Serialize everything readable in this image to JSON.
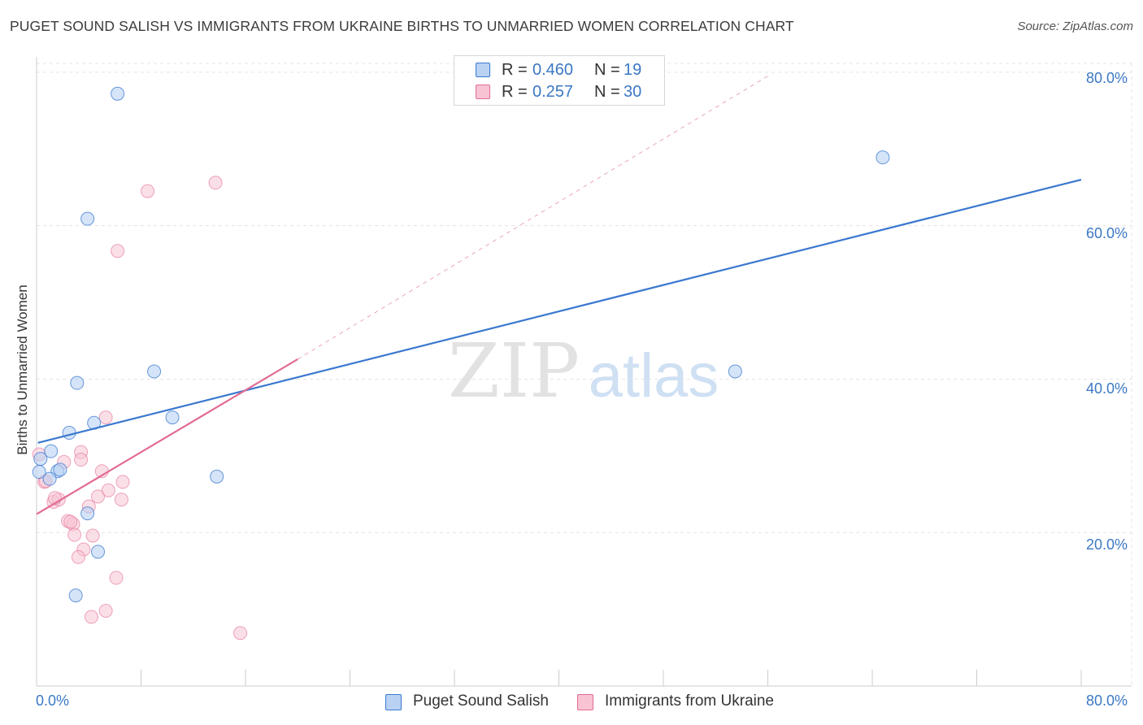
{
  "title": "PUGET SOUND SALISH VS IMMIGRANTS FROM UKRAINE BIRTHS TO UNMARRIED WOMEN CORRELATION CHART",
  "source": "Source: ZipAtlas.com",
  "watermark": {
    "zip": "ZIP",
    "atlas": "atlas"
  },
  "legend": {
    "rows": [
      {
        "r_label": "R =",
        "r_value": "0.460",
        "n_label": "N =",
        "n_value": "19"
      },
      {
        "r_label": "R =",
        "r_value": "0.257",
        "n_label": "N =",
        "n_value": "30"
      }
    ]
  },
  "bottom_legend": {
    "series1": "Puget Sound Salish",
    "series2": "Immigrants from Ukraine"
  },
  "chart_data": {
    "type": "scatter",
    "title": "PUGET SOUND SALISH VS IMMIGRANTS FROM UKRAINE BIRTHS TO UNMARRIED WOMEN CORRELATION CHART",
    "xlabel": "",
    "ylabel": "Births to Unmarried Women",
    "xlim": [
      0,
      80
    ],
    "ylim": [
      0,
      82
    ],
    "x_tick_labels": [
      "0.0%",
      "80.0%"
    ],
    "y_tick_labels": [
      "20.0%",
      "40.0%",
      "60.0%",
      "80.0%"
    ],
    "y_ticks": [
      20,
      40,
      60,
      80
    ],
    "grid": true,
    "legend_position": "top-center",
    "colors": {
      "series1": "#3a78d0",
      "series2": "#e26b94",
      "series1_fill": "#b9d2f3",
      "series2_fill": "#f8c4d3"
    },
    "series": [
      {
        "name": "Puget Sound Salish",
        "points": [
          [
            6.2,
            77.2
          ],
          [
            3.9,
            60.9
          ],
          [
            3.1,
            39.5
          ],
          [
            9.0,
            41.0
          ],
          [
            10.4,
            35.0
          ],
          [
            4.4,
            34.3
          ],
          [
            2.5,
            33.0
          ],
          [
            1.1,
            30.6
          ],
          [
            0.3,
            29.6
          ],
          [
            1.6,
            28.0
          ],
          [
            1.8,
            28.2
          ],
          [
            1.0,
            27.0
          ],
          [
            13.8,
            27.3
          ],
          [
            3.9,
            22.5
          ],
          [
            4.7,
            17.5
          ],
          [
            3.0,
            11.8
          ],
          [
            64.8,
            68.9
          ],
          [
            53.5,
            41.0
          ],
          [
            0.2,
            27.9
          ]
        ],
        "trend": {
          "x1": 0.1,
          "y1": 31.7,
          "x2": 80.0,
          "y2": 66.0
        }
      },
      {
        "name": "Immigrants from Ukraine",
        "points": [
          [
            13.7,
            65.6
          ],
          [
            8.5,
            64.5
          ],
          [
            6.2,
            56.7
          ],
          [
            5.3,
            35.0
          ],
          [
            2.1,
            29.2
          ],
          [
            3.4,
            30.5
          ],
          [
            3.4,
            29.5
          ],
          [
            5.0,
            28.0
          ],
          [
            0.6,
            26.6
          ],
          [
            0.7,
            26.7
          ],
          [
            6.6,
            26.6
          ],
          [
            5.5,
            25.5
          ],
          [
            4.7,
            24.7
          ],
          [
            6.5,
            24.3
          ],
          [
            1.3,
            24.0
          ],
          [
            1.7,
            24.3
          ],
          [
            1.4,
            24.5
          ],
          [
            4.0,
            23.4
          ],
          [
            2.4,
            21.5
          ],
          [
            2.8,
            21.1
          ],
          [
            2.9,
            19.7
          ],
          [
            4.3,
            19.6
          ],
          [
            3.6,
            17.8
          ],
          [
            3.2,
            16.8
          ],
          [
            6.1,
            14.1
          ],
          [
            5.3,
            9.8
          ],
          [
            4.2,
            9.0
          ],
          [
            15.6,
            6.9
          ],
          [
            0.2,
            30.2
          ],
          [
            2.6,
            21.4
          ]
        ],
        "trend": {
          "x1": 0.0,
          "y1": 22.4,
          "x2": 20.0,
          "y2": 42.6
        },
        "trend_extension": {
          "x1": 20.0,
          "y1": 42.6,
          "x2": 56.0,
          "y2": 79.5
        }
      }
    ]
  }
}
